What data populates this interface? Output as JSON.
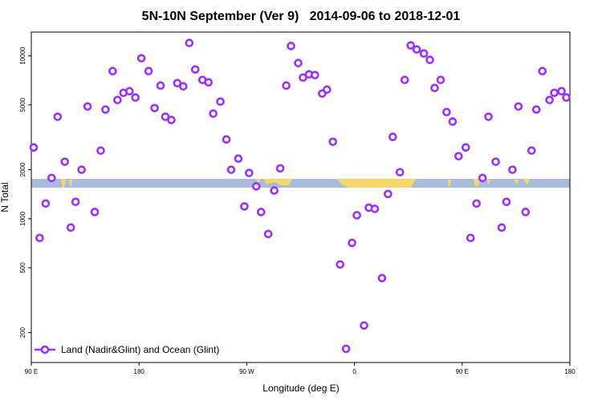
{
  "chart_data": {
    "type": "scatter",
    "title": "5N-10N September (Ver 9)   2014-09-06 to 2018-12-01",
    "x_label": "Longitude (deg E)",
    "y_label": "N Total",
    "log_y": true,
    "legend": "bottom-left",
    "xlim": [
      90,
      540
    ],
    "ylim": [
      131,
      14000
    ],
    "xticks": [
      {
        "value": 90,
        "label": "90 E"
      },
      180,
      {
        "value": 270,
        "label": "90 W"
      },
      {
        "value": 360,
        "label": "0"
      },
      {
        "value": 450,
        "label": "90 E"
      },
      {
        "value": 540,
        "label": "180"
      }
    ],
    "yticks": [
      200,
      500,
      1000,
      2000,
      5000,
      10000
    ],
    "x": [
      92,
      97,
      102,
      107,
      112,
      118,
      123,
      127,
      132,
      137,
      143,
      148,
      152,
      158,
      162,
      167,
      172,
      177,
      182,
      188,
      193,
      198,
      202,
      207,
      212,
      217,
      222,
      227,
      233,
      238,
      242,
      248,
      253,
      257,
      263,
      268,
      272,
      278,
      282,
      288,
      293,
      298,
      303,
      307,
      313,
      317,
      322,
      327,
      333,
      337,
      342,
      348,
      353,
      358,
      362,
      368,
      372,
      377,
      383,
      388,
      392,
      398,
      402,
      407,
      412,
      418,
      423,
      427,
      432,
      437,
      442,
      447,
      453,
      457,
      462,
      467,
      472,
      478,
      483,
      487,
      492,
      497,
      503,
      508,
      512,
      517,
      523,
      527,
      533,
      537
    ],
    "series": [
      {
        "name": "Land (Nadir&Glint) and Ocean (Glint)",
        "color": "#9b30ff",
        "values": [
          2740,
          762,
          1240,
          1780,
          4230,
          2240,
          883,
          1270,
          2000,
          4890,
          1100,
          2620,
          4680,
          8060,
          5360,
          5930,
          6070,
          5550,
          9670,
          8060,
          4780,
          6570,
          4230,
          4040,
          6800,
          6500,
          12000,
          8250,
          7120,
          6880,
          4420,
          5240,
          3070,
          2000,
          2340,
          1190,
          1910,
          1580,
          1100,
          806,
          1490,
          2040,
          6570,
          11500,
          9030,
          7360,
          7700,
          7620,
          5870,
          6210,
          2970,
          524,
          159,
          711,
          1050,
          221,
          1170,
          1150,
          432,
          1420,
          3180,
          1930,
          7120,
          11600,
          10950,
          10340,
          9450,
          6350,
          7120,
          4520,
          3950,
          2420,
          2740,
          762,
          1240,
          1780,
          4230,
          2240,
          883,
          1270,
          2000,
          4890,
          1100,
          2620,
          4680,
          8060,
          5360,
          5930,
          6070,
          5550
        ]
      }
    ]
  }
}
